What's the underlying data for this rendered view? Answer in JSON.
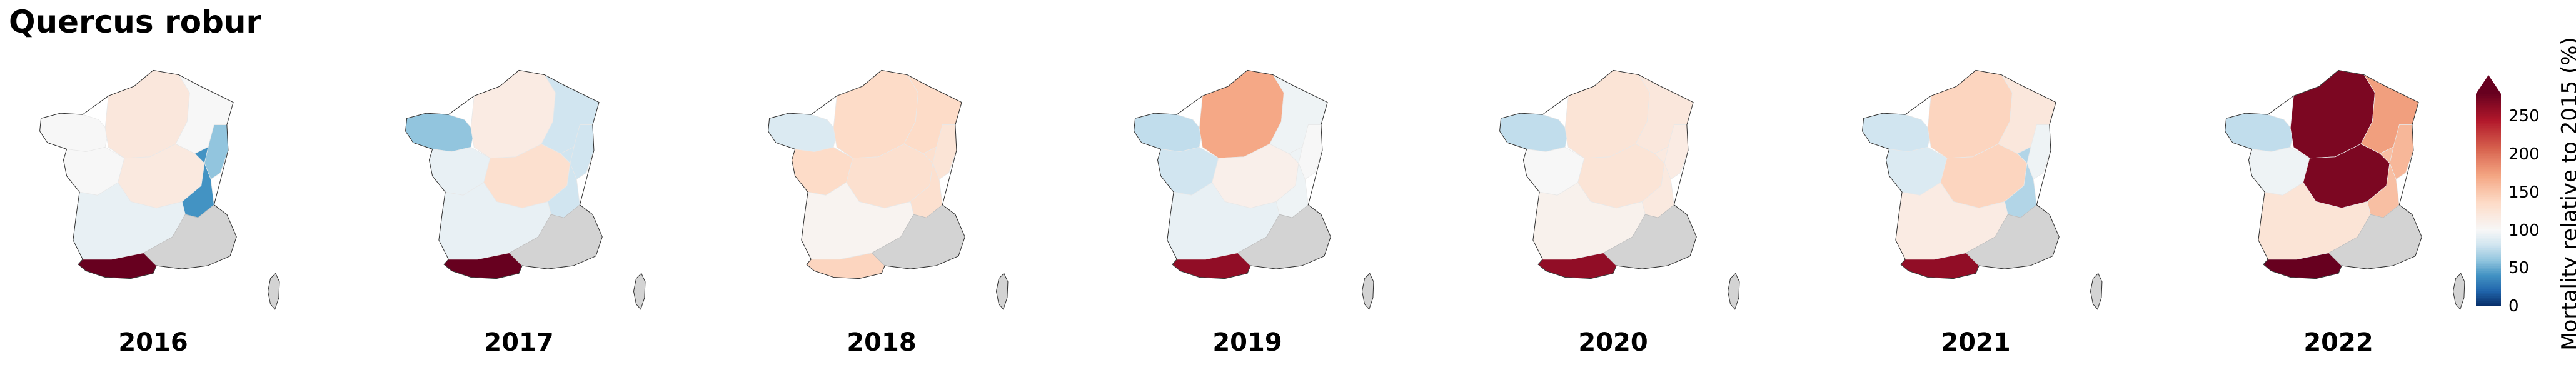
{
  "title": "Quercus robur",
  "colors": {
    "no_data": "#d3d3d3",
    "outline": "#333333"
  },
  "colorbar": {
    "label": "Mortality relative to 2015 (%)",
    "range": [
      0,
      280
    ],
    "extend": "max",
    "ticks": [
      {
        "value": 0,
        "label": "0"
      },
      {
        "value": 50,
        "label": "50"
      },
      {
        "value": 100,
        "label": "100"
      },
      {
        "value": 150,
        "label": "150"
      },
      {
        "value": 200,
        "label": "200"
      },
      {
        "value": 250,
        "label": "250"
      }
    ],
    "stops": [
      "#08306b",
      "#2166ac",
      "#4393c3",
      "#92c5de",
      "#d1e5f0",
      "#f7f7f7",
      "#fddbc7",
      "#f4a582",
      "#d6604d",
      "#b2182b",
      "#67001f"
    ]
  },
  "regions": [
    "brittany",
    "north",
    "northeast",
    "west",
    "center",
    "east-alps",
    "southwest",
    "pyrenees",
    "southeast",
    "alsace-strip"
  ],
  "panels": [
    {
      "year": "2016",
      "values": {
        "brittany": 100,
        "north": 120,
        "northeast": 100,
        "west": 100,
        "center": 118,
        "east-alps": 40,
        "southwest": 92,
        "pyrenees": 300,
        "southeast": null,
        "alsace-strip": 60
      }
    },
    {
      "year": "2017",
      "values": {
        "brittany": 60,
        "north": 115,
        "northeast": 80,
        "west": 92,
        "center": 130,
        "east-alps": 80,
        "southwest": 92,
        "pyrenees": 300,
        "southeast": null,
        "alsace-strip": 80
      }
    },
    {
      "year": "2018",
      "values": {
        "brittany": 85,
        "north": 135,
        "northeast": 135,
        "west": 135,
        "center": 130,
        "east-alps": 130,
        "southwest": 105,
        "pyrenees": 140,
        "southeast": null,
        "alsace-strip": 125
      }
    },
    {
      "year": "2019",
      "values": {
        "brittany": 75,
        "north": 170,
        "northeast": 95,
        "west": 80,
        "center": 110,
        "east-alps": 95,
        "southwest": 92,
        "pyrenees": 260,
        "southeast": null,
        "alsace-strip": 100
      }
    },
    {
      "year": "2020",
      "values": {
        "brittany": 75,
        "north": 125,
        "northeast": 120,
        "west": 100,
        "center": 125,
        "east-alps": 118,
        "southwest": 108,
        "pyrenees": 260,
        "southeast": null,
        "alsace-strip": 115
      }
    },
    {
      "year": "2021",
      "values": {
        "brittany": 80,
        "north": 140,
        "northeast": 120,
        "west": 85,
        "center": 140,
        "east-alps": 70,
        "southwest": 115,
        "pyrenees": 260,
        "southeast": null,
        "alsace-strip": 95
      }
    },
    {
      "year": "2022",
      "values": {
        "brittany": 75,
        "north": 270,
        "northeast": 175,
        "west": 95,
        "center": 270,
        "east-alps": 155,
        "southwest": 125,
        "pyrenees": 300,
        "southeast": null,
        "alsace-strip": 160
      }
    }
  ]
}
